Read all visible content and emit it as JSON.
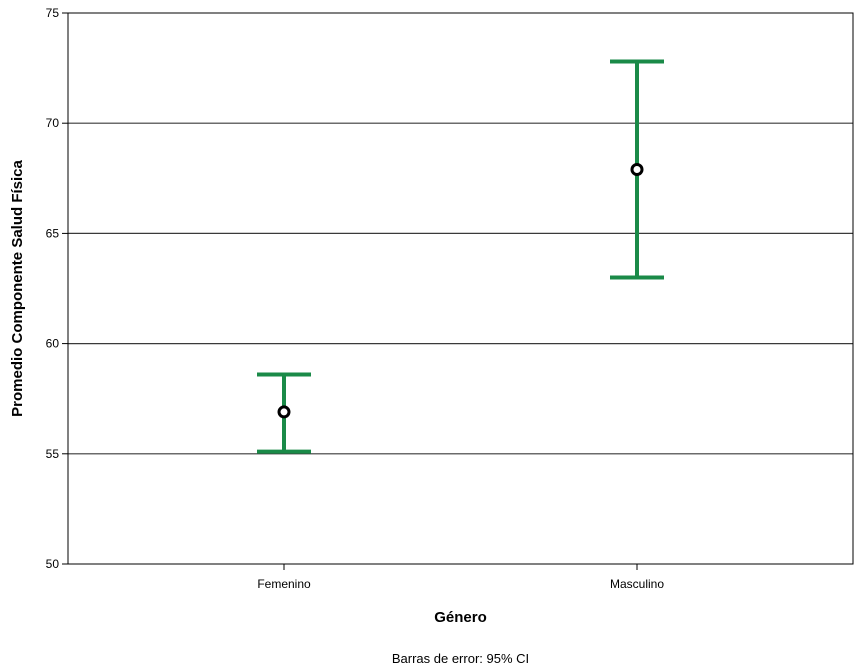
{
  "chart_data": {
    "type": "errorbar",
    "xlabel": "Género",
    "ylabel": "Promedio Componente Salud Física",
    "ylim": [
      50,
      75
    ],
    "yticks": [
      50,
      55,
      60,
      65,
      70,
      75
    ],
    "grid": true,
    "categories": [
      "Femenino",
      "Masculino"
    ],
    "points": [
      {
        "category": "Femenino",
        "mean": 56.9,
        "lower": 55.1,
        "upper": 58.6
      },
      {
        "category": "Masculino",
        "mean": 67.9,
        "lower": 63.0,
        "upper": 72.8
      }
    ],
    "footnote": "Barras de error: 95% CI",
    "colors": {
      "errorbar": "#1a8a48",
      "marker": "#000000",
      "grid": "#3a3a3a",
      "axis": "#000000"
    }
  }
}
